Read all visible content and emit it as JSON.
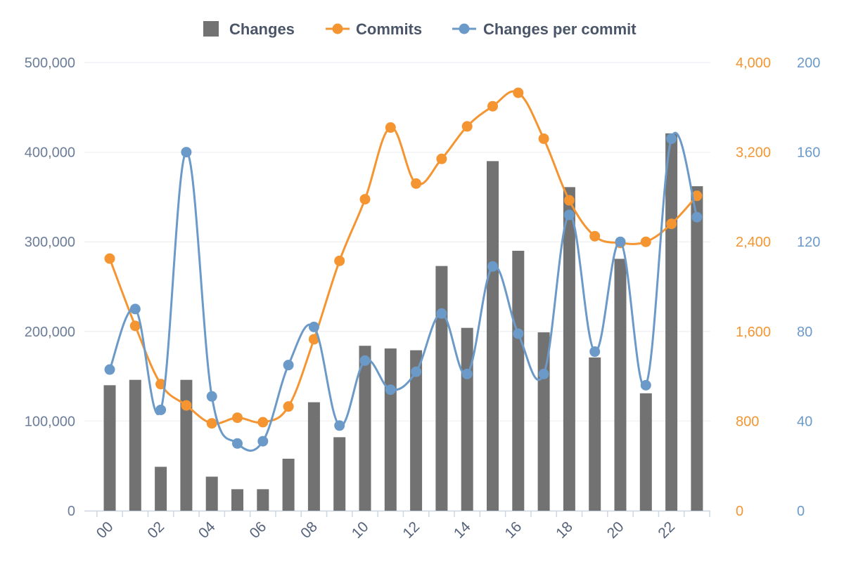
{
  "chart_data": {
    "type": "bar+line",
    "categories": [
      "00",
      "01",
      "02",
      "03",
      "04",
      "05",
      "06",
      "07",
      "08",
      "09",
      "10",
      "11",
      "12",
      "13",
      "14",
      "15",
      "16",
      "17",
      "18",
      "19",
      "20",
      "21",
      "22",
      "23"
    ],
    "x_tick_labels": [
      "00",
      "02",
      "04",
      "06",
      "08",
      "10",
      "12",
      "14",
      "16",
      "18",
      "20",
      "22"
    ],
    "legend": {
      "placement": "top-center"
    },
    "grid": true,
    "axes": {
      "y_left": {
        "range": [
          0,
          500000
        ],
        "ticks": [
          "0",
          "100,000",
          "200,000",
          "300,000",
          "400,000",
          "500,000"
        ],
        "tick_values": [
          0,
          100000,
          200000,
          300000,
          400000,
          500000
        ]
      },
      "y_right_1": {
        "range": [
          0,
          4000
        ],
        "ticks": [
          "0",
          "800",
          "1,600",
          "2,400",
          "3,200",
          "4,000"
        ],
        "tick_values": [
          0,
          800,
          1600,
          2400,
          3200,
          4000
        ],
        "color": "#f59532"
      },
      "y_right_2": {
        "range": [
          0,
          200
        ],
        "ticks": [
          "0",
          "40",
          "80",
          "120",
          "160",
          "200"
        ],
        "tick_values": [
          0,
          40,
          80,
          120,
          160,
          200
        ],
        "color": "#6b9ac9"
      }
    },
    "series": [
      {
        "name": "Changes",
        "kind": "bar",
        "axis": "y_left",
        "color": "#727272",
        "values": [
          140000,
          146000,
          49000,
          146000,
          38000,
          24000,
          24000,
          58000,
          121000,
          82000,
          184000,
          181000,
          179000,
          273000,
          204000,
          390000,
          290000,
          199000,
          361000,
          171000,
          281000,
          131000,
          421000,
          362000
        ]
      },
      {
        "name": "Commits",
        "kind": "line",
        "axis": "y_right_1",
        "color": "#f59532",
        "values": [
          2250,
          1650,
          1130,
          940,
          780,
          830,
          790,
          930,
          1530,
          2230,
          2780,
          3420,
          2920,
          3140,
          3430,
          3610,
          3730,
          3320,
          2770,
          2450,
          2390,
          2400,
          2560,
          2810
        ]
      },
      {
        "name": "Changes per commit",
        "kind": "line",
        "axis": "y_right_2",
        "color": "#6b9ac9",
        "values": [
          63,
          90,
          45,
          160,
          51,
          30,
          31,
          65,
          82,
          38,
          67,
          54,
          62,
          88,
          61,
          109,
          79,
          61,
          132,
          71,
          120,
          56,
          166,
          131
        ]
      }
    ]
  }
}
